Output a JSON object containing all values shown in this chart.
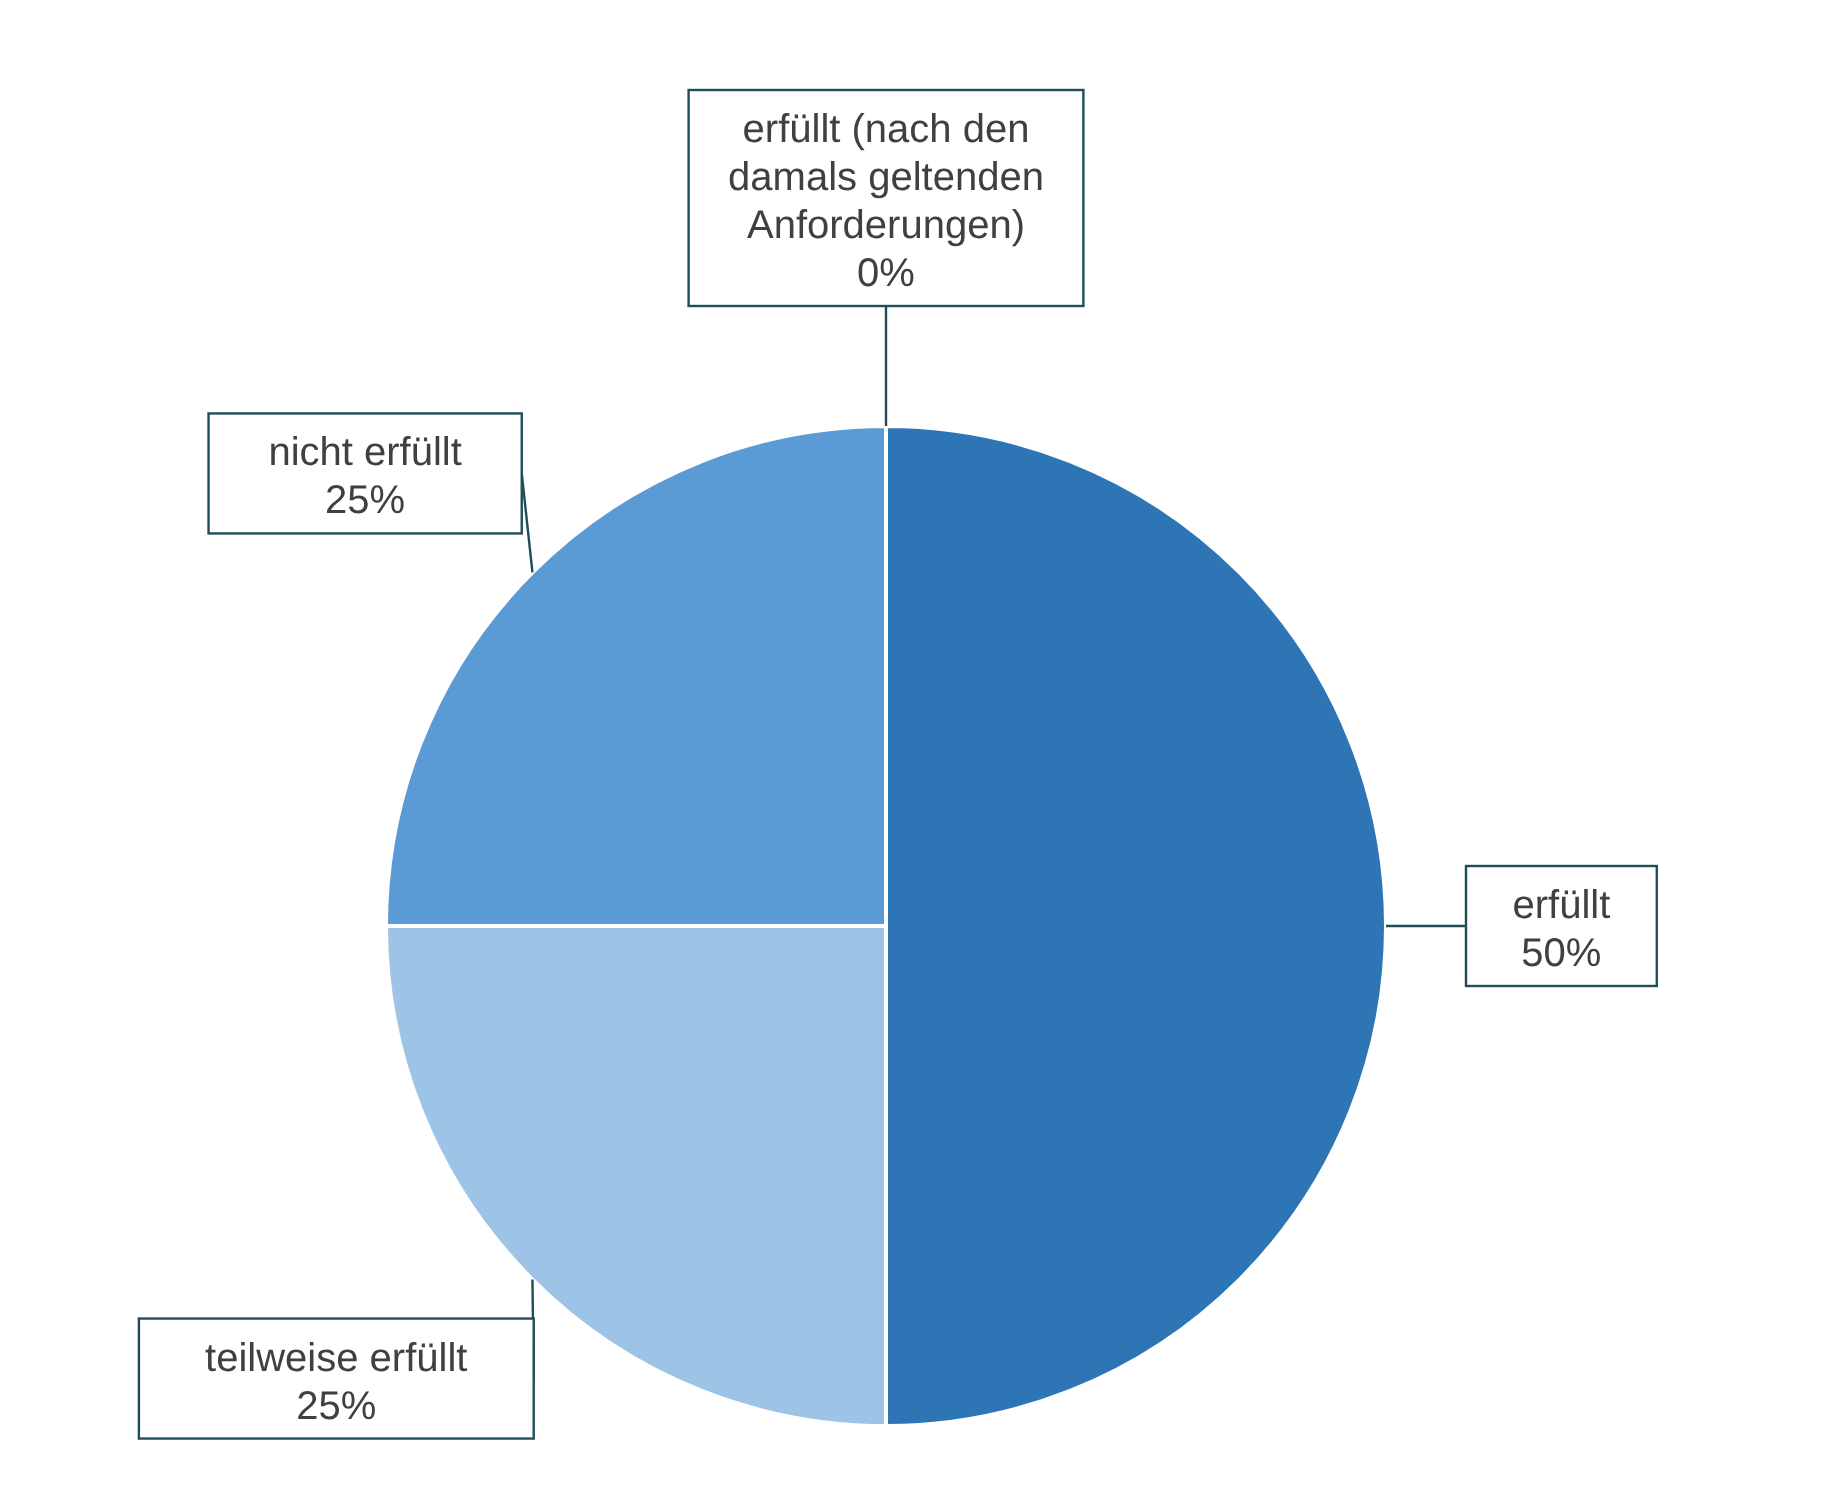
{
  "chart_data": {
    "type": "pie",
    "categories": [
      "erfüllt",
      "teilweise erfüllt",
      "nicht erfüllt",
      "erfüllt (nach den damals geltenden Anforderungen)"
    ],
    "values": [
      50,
      25,
      25,
      0
    ],
    "colors": [
      "#2e75b6",
      "#9dc3e6",
      "#5b9bd5",
      "#1f4e79"
    ],
    "value_labels": [
      "50%",
      "25%",
      "25%",
      "0%"
    ],
    "legend": false
  }
}
